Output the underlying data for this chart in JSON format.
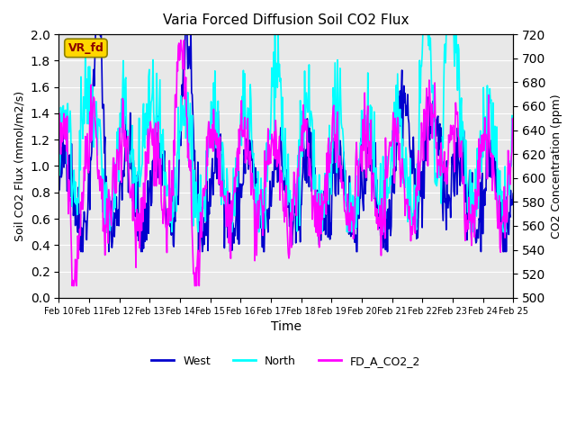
{
  "title": "Varia Forced Diffusion Soil CO2 Flux",
  "xlabel": "Time",
  "ylabel_left": "Soil CO2 Flux (mmol/m2/s)",
  "ylabel_right": "CO2 Concentration (ppm)",
  "ylim_left": [
    0.0,
    2.0
  ],
  "ylim_right": [
    500,
    720
  ],
  "yticks_left": [
    0.0,
    0.2,
    0.4,
    0.6,
    0.8,
    1.0,
    1.2,
    1.4,
    1.6,
    1.8,
    2.0
  ],
  "yticks_right": [
    500,
    520,
    540,
    560,
    580,
    600,
    620,
    640,
    660,
    680,
    700,
    720
  ],
  "xtick_labels": [
    "Feb 10",
    "Feb 11",
    "Feb 12",
    "Feb 13",
    "Feb 14",
    "Feb 15",
    "Feb 16",
    "Feb 17",
    "Feb 18",
    "Feb 19",
    "Feb 20",
    "Feb 21",
    "Feb 22",
    "Feb 23",
    "Feb 24",
    "Feb 25"
  ],
  "n_days": 15,
  "points_per_day": 48,
  "west_color": "#0000CD",
  "north_color": "#00FFFF",
  "co2_color": "#FF00FF",
  "west_linewidth": 1.2,
  "north_linewidth": 1.2,
  "co2_linewidth": 1.2,
  "vr_fd_label": "VR_fd",
  "vr_fd_text_color": "#8B0000",
  "vr_fd_box_color": "#FFD700",
  "legend_labels": [
    "West",
    "North",
    "FD_A_CO2_2"
  ],
  "bg_color": "#E8E8E8",
  "grid_color": "white",
  "fig_bg": "#FFFFFF"
}
